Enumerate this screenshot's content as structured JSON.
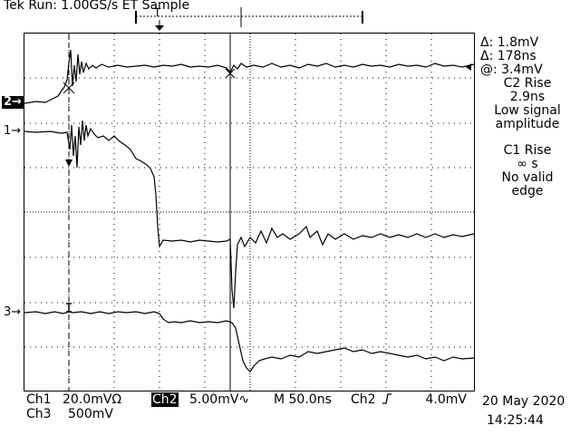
{
  "header": {
    "title": "Tek Run: 1.00GS/s ET Sample"
  },
  "readout": {
    "delta_v": "Δ: 1.8mV",
    "delta_t": "Δ: 178ns",
    "at_v": "@: 3.4mV",
    "m1_title": "C2 Rise",
    "m1_value": "2.9ns",
    "m1_note1": "Low signal",
    "m1_note2": "amplitude",
    "m2_title": "C1 Rise",
    "m2_value": "∞ s",
    "m2_note1": "No valid",
    "m2_note2": "edge"
  },
  "channels": {
    "ch2_marker": "2→",
    "ch1_marker": "1→",
    "ch3_marker": "3→"
  },
  "bottom": {
    "ch1_label": "Ch1",
    "ch1_scale": "20.0mVΩ",
    "ch2_label": "Ch2",
    "ch2_scale": "5.00mV∿",
    "timebase": "M 50.0ns",
    "trig_ch": "Ch2",
    "trig_slope_icon": "rising-edge-icon",
    "trig_level": "4.0mV",
    "ch3_label": "Ch3",
    "ch3_scale": "500mV",
    "date": "20 May 2020",
    "time": "14:25:44"
  },
  "colors": {
    "trace": "#000000",
    "background": "#ffffff"
  }
}
